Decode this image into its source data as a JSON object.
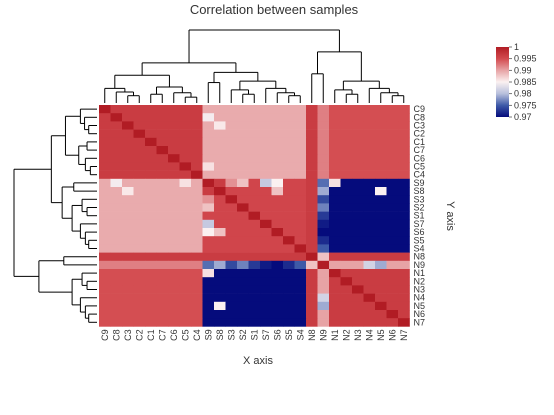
{
  "chart_data": {
    "type": "heatmap",
    "title": "Correlation between samples",
    "xlabel": "X axis",
    "ylabel": "Y axis",
    "samples": [
      "C9",
      "C8",
      "C3",
      "C2",
      "C1",
      "C7",
      "C6",
      "C5",
      "C4",
      "S9",
      "S8",
      "S3",
      "S2",
      "S1",
      "S7",
      "S6",
      "S5",
      "S4",
      "N8",
      "N9",
      "N1",
      "N2",
      "N3",
      "N4",
      "N5",
      "N6",
      "N7"
    ],
    "color_scale": {
      "min": 0.97,
      "max": 1,
      "ticks": [
        "1",
        "0.995",
        "0.99",
        "0.985",
        "0.98",
        "0.975",
        "0.97"
      ],
      "stops": [
        {
          "value": 0.97,
          "color": "#050b7c"
        },
        {
          "value": 0.975,
          "color": "#3e5aa8"
        },
        {
          "value": 0.98,
          "color": "#b7bfdc"
        },
        {
          "value": 0.985,
          "color": "#fbf1f1"
        },
        {
          "value": 0.99,
          "color": "#e7a3a5"
        },
        {
          "value": 0.995,
          "color": "#d34a4f"
        },
        {
          "value": 1,
          "color": "#b11c24"
        }
      ]
    },
    "groups": {
      "C": {
        "within": 0.9965
      },
      "S": {
        "within": 0.9955
      },
      "N": {
        "within": 0.9965
      },
      "C_S": 0.9895,
      "C_N": 0.9948,
      "S_N": 0.9935,
      "N8_all": 0.9965,
      "N9_vs_C": 0.992,
      "N9_vs_S": 0.9755,
      "N9_vs_N": 0.99
    },
    "overrides": [
      {
        "a": "S9",
        "b": "S8",
        "v": 0.9965
      },
      {
        "a": "S9",
        "b": "S3",
        "v": 0.991
      },
      {
        "a": "S9",
        "b": "S2",
        "v": 0.988
      },
      {
        "a": "S9",
        "b": "S7",
        "v": 0.981
      },
      {
        "a": "S9",
        "b": "S6",
        "v": 0.985
      },
      {
        "a": "S8",
        "b": "S6",
        "v": 0.988
      },
      {
        "a": "S9",
        "b": "N9",
        "v": 0.976
      },
      {
        "a": "S8",
        "b": "N9",
        "v": 0.979
      },
      {
        "a": "S7",
        "b": "N9",
        "v": 0.971
      },
      {
        "a": "S6",
        "b": "N9",
        "v": 0.97
      },
      {
        "a": "S5",
        "b": "N9",
        "v": 0.972
      },
      {
        "a": "S4",
        "b": "N9",
        "v": 0.975
      },
      {
        "a": "S3",
        "b": "N9",
        "v": 0.974
      },
      {
        "a": "S2",
        "b": "N9",
        "v": 0.977
      },
      {
        "a": "S1",
        "b": "N9",
        "v": 0.973
      },
      {
        "a": "N5",
        "b": "N9",
        "v": 0.979
      },
      {
        "a": "N4",
        "b": "N9",
        "v": 0.982
      },
      {
        "a": "N8",
        "b": "N9",
        "v": 0.988
      },
      {
        "a": "S9",
        "b": "C8",
        "v": 0.9845
      },
      {
        "a": "S9",
        "b": "C5",
        "v": 0.986
      },
      {
        "a": "S8",
        "b": "C3",
        "v": 0.9855
      },
      {
        "a": "S9",
        "b": "N1",
        "v": 0.986
      },
      {
        "a": "S8",
        "b": "N5",
        "v": 0.985
      }
    ]
  }
}
